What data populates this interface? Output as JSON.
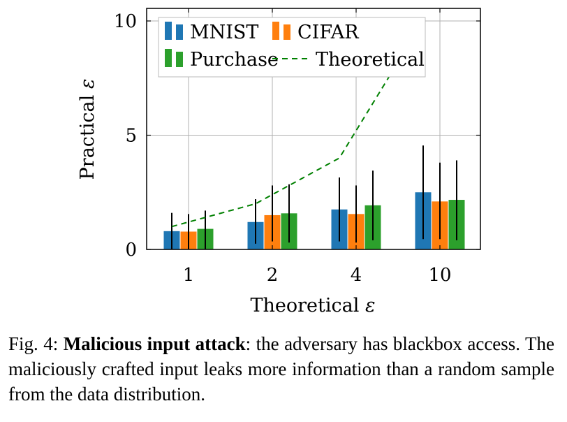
{
  "chart_data": {
    "type": "bar",
    "xlabel_text": "Theoretical",
    "xlabel_symbol": "ε",
    "ylabel_text": "Practical",
    "ylabel_symbol": "ε",
    "categories": [
      "1",
      "2",
      "4",
      "10"
    ],
    "ylim": [
      0,
      10
    ],
    "yticks": [
      "0",
      "5",
      "10"
    ],
    "grid": true,
    "legend_position": "top-left",
    "series": [
      {
        "name": "MNIST",
        "color": "#1f77b4",
        "values": [
          0.8,
          1.2,
          1.75,
          2.5
        ],
        "err_low": [
          0.0,
          0.25,
          0.35,
          0.45
        ],
        "err_high": [
          1.6,
          2.2,
          3.15,
          4.55
        ]
      },
      {
        "name": "CIFAR",
        "color": "#ff7f0e",
        "values": [
          0.78,
          1.5,
          1.55,
          2.1
        ],
        "err_low": [
          0.0,
          0.35,
          0.3,
          0.45
        ],
        "err_high": [
          1.55,
          2.8,
          2.8,
          3.8
        ]
      },
      {
        "name": "Purchase",
        "color": "#2ca02c",
        "values": [
          0.9,
          1.58,
          1.93,
          2.17
        ],
        "err_low": [
          0.0,
          0.3,
          0.4,
          0.4
        ],
        "err_high": [
          1.7,
          2.85,
          3.45,
          3.9
        ]
      }
    ],
    "theoretical_line": {
      "name": "Theoretical",
      "color": "#008000",
      "values": [
        1,
        2,
        4,
        10
      ]
    }
  },
  "caption": {
    "prefix": "Fig. 4: ",
    "bold": "Malicious input attack",
    "rest": ": the adversary has blackbox access. The maliciously crafted input leaks more information than a random sample from the data distribution."
  }
}
